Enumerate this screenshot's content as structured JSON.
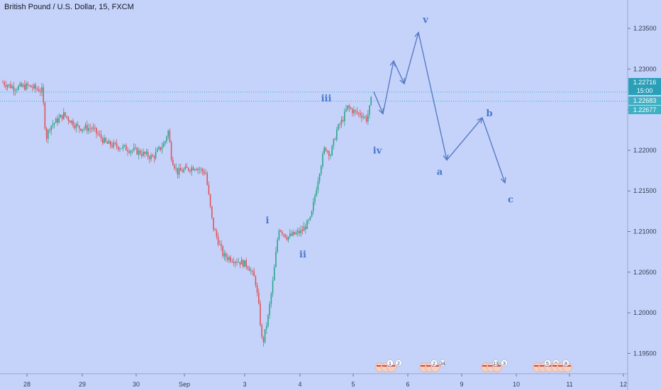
{
  "header": {
    "title": "British Pound / U.S. Dollar, 15, FXCM"
  },
  "chart_data": {
    "type": "candlestick",
    "y_axis": {
      "ticks": [
        "1.23500",
        "1.23000",
        "1.22500",
        "1.22000",
        "1.21500",
        "1.21000",
        "1.20500",
        "1.20000",
        "1.19500"
      ],
      "ylim": [
        1.1925,
        1.2385
      ]
    },
    "x_axis": {
      "ticks": [
        "28",
        "29",
        "30",
        "Sep",
        "3",
        "4",
        "5",
        "6",
        "9",
        "10",
        "11",
        "12"
      ]
    },
    "price_tags": [
      {
        "label": "1.22716",
        "value": 1.22716,
        "color": "#2a9fb8"
      },
      {
        "label": "15:00",
        "value": 1.22605,
        "color": "#2a9fb8"
      },
      {
        "label": "1.22683",
        "value": 1.22683,
        "color": "#3fb0c3"
      },
      {
        "label": "1.22677",
        "value": 1.22677,
        "color": "#3fb0c3"
      }
    ],
    "price_path": [
      [
        0,
        1.2285
      ],
      [
        20,
        1.2277
      ],
      [
        40,
        1.2279
      ],
      [
        60,
        1.2273
      ],
      [
        62,
        1.2245
      ],
      [
        65,
        1.2215
      ],
      [
        70,
        1.2229
      ],
      [
        90,
        1.2244
      ],
      [
        110,
        1.2228
      ],
      [
        130,
        1.2227
      ],
      [
        150,
        1.2208
      ],
      [
        175,
        1.2203
      ],
      [
        195,
        1.2198
      ],
      [
        215,
        1.2191
      ],
      [
        232,
        1.2209
      ],
      [
        237,
        1.2225
      ],
      [
        242,
        1.219
      ],
      [
        250,
        1.2173
      ],
      [
        275,
        1.218
      ],
      [
        290,
        1.2172
      ],
      [
        300,
        1.2107
      ],
      [
        315,
        1.207
      ],
      [
        335,
        1.2064
      ],
      [
        350,
        1.2058
      ],
      [
        360,
        1.204
      ],
      [
        365,
        1.2006
      ],
      [
        370,
        1.196
      ],
      [
        378,
        1.1995
      ],
      [
        385,
        1.204
      ],
      [
        393,
        1.2105
      ],
      [
        405,
        1.2093
      ],
      [
        425,
        1.21
      ],
      [
        438,
        1.2115
      ],
      [
        450,
        1.2173
      ],
      [
        458,
        1.2204
      ],
      [
        466,
        1.2195
      ],
      [
        475,
        1.2225
      ],
      [
        482,
        1.2236
      ],
      [
        490,
        1.2253
      ],
      [
        500,
        1.2247
      ],
      [
        510,
        1.2244
      ],
      [
        517,
        1.2238
      ],
      [
        522,
        1.2255
      ],
      [
        526,
        1.2276
      ]
    ],
    "projection": [
      [
        527,
        1.2272
      ],
      [
        540,
        1.2245
      ],
      [
        555,
        1.231
      ],
      [
        570,
        1.2282
      ],
      [
        590,
        1.2345
      ],
      [
        630,
        1.2188
      ],
      [
        680,
        1.224
      ],
      [
        712,
        1.216
      ]
    ],
    "wave_labels": [
      {
        "text": "i",
        "x": 377,
        "value": 1.211
      },
      {
        "text": "ii",
        "x": 427,
        "value": 1.2068
      },
      {
        "text": "iii",
        "x": 460,
        "value": 1.226
      },
      {
        "text": "iv",
        "x": 532,
        "value": 1.2196
      },
      {
        "text": "v",
        "x": 600,
        "value": 1.2357
      },
      {
        "text": "a",
        "x": 620,
        "value": 1.217
      },
      {
        "text": "b",
        "x": 690,
        "value": 1.2242
      },
      {
        "text": "c",
        "x": 720,
        "value": 1.2136
      }
    ],
    "event_markers": [
      {
        "x": 548,
        "labels": [
          "1",
          "2"
        ]
      },
      {
        "x": 610,
        "labels": [
          "2",
          "34"
        ]
      },
      {
        "x": 697,
        "labels": [
          "13",
          "3"
        ]
      },
      {
        "x": 770,
        "labels": [
          "5",
          "2"
        ]
      },
      {
        "x": 796,
        "labels": [
          "8"
        ]
      }
    ],
    "colors": {
      "background": "#c5d3fb",
      "up": "#2fa38a",
      "down": "#e0545a",
      "projection": "#5a7bc4",
      "dotted_line": "#3fb0c3"
    }
  }
}
